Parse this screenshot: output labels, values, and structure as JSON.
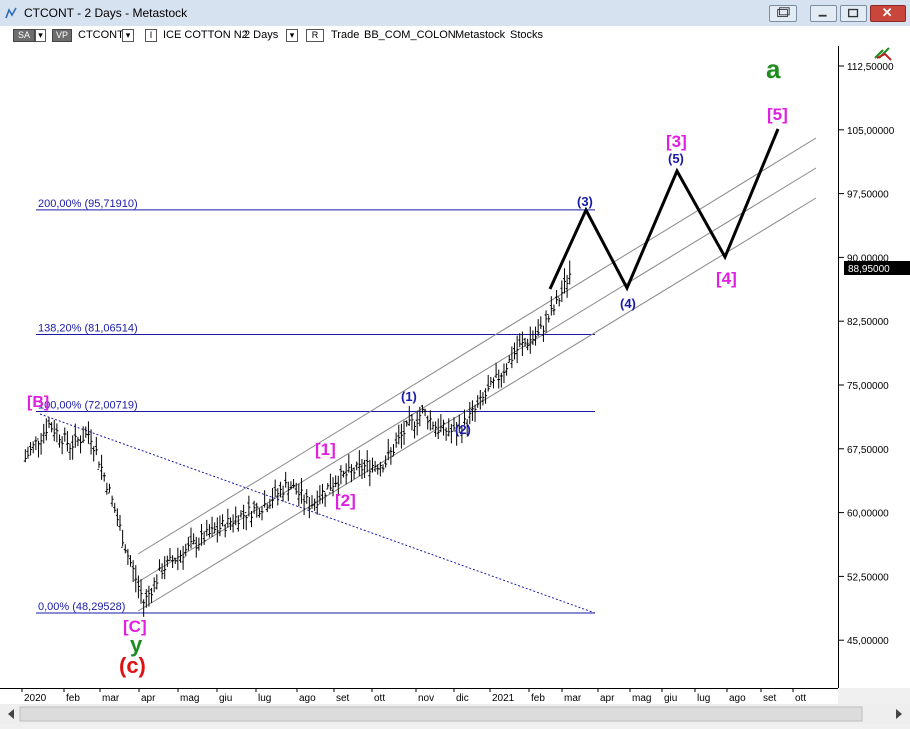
{
  "window": {
    "title": "CTCONT - 2 Days - Metastock"
  },
  "toolbar": {
    "sa_label": "SA",
    "vp_label": "VP",
    "symbol": "CTCONT",
    "instrument": "ICE COTTON N2",
    "period": "2 Days",
    "r_label": "R",
    "mode": "Trade",
    "source": "BB_COM_COLON",
    "vendor": "Metastock",
    "type": "Stocks",
    "dropdown_glyph": "▾",
    "i_glyph": "I"
  },
  "price_axis": {
    "ticks": [
      "112,50000",
      "105,00000",
      "97,50000",
      "90,00000",
      "82,50000",
      "75,00000",
      "67,50000",
      "60,00000",
      "52,50000",
      "45,00000"
    ],
    "last_price": "88,95000"
  },
  "date_axis": {
    "labels": [
      "2020",
      "feb",
      "mar",
      "apr",
      "mag",
      "giu",
      "lug",
      "ago",
      "set",
      "ott",
      "nov",
      "dic",
      "2021",
      "feb",
      "mar",
      "apr",
      "mag",
      "giu",
      "lug",
      "ago",
      "set",
      "ott"
    ]
  },
  "fib_levels": [
    {
      "label": "200,00% (95,71910)",
      "value": 95.7191
    },
    {
      "label": "138,20% (81,06514)",
      "value": 81.06514
    },
    {
      "label": "100,00% (72,00719)",
      "value": 72.00719
    },
    {
      "label": "0,00% (48,29528)",
      "value": 48.29528
    }
  ],
  "wave_labels": {
    "b_top": "[B]",
    "c_bottom": "[C]",
    "y": "y",
    "c_small": "(c)",
    "w1": "[1]",
    "w2": "[2]",
    "sub1": "(1)",
    "sub2": "(2)",
    "sub3": "(3)",
    "sub4": "(4)",
    "sub5": "(5)",
    "w3": "[3]",
    "w4": "[4]",
    "w5": "[5]",
    "a": "a"
  },
  "chart_data": {
    "type": "ohlc",
    "symbol": "CTCONT",
    "period": "2 Days",
    "y_range": [
      41.5,
      117.5
    ],
    "last_price": 88.95,
    "fib_extension": [
      {
        "ratio": "0,00%",
        "price": 48.29528
      },
      {
        "ratio": "100,00%",
        "price": 72.00719
      },
      {
        "ratio": "138,20%",
        "price": 81.06514
      },
      {
        "ratio": "200,00%",
        "price": 95.7191
      }
    ],
    "price_path_approx": [
      {
        "date": "2020-01-02",
        "price": 66.5
      },
      {
        "date": "2020-01-20",
        "price": 70.5
      },
      {
        "date": "2020-02-05",
        "price": 68.0
      },
      {
        "date": "2020-02-20",
        "price": 69.5
      },
      {
        "date": "2020-03-05",
        "price": 63.0
      },
      {
        "date": "2020-03-20",
        "price": 55.0
      },
      {
        "date": "2020-04-01",
        "price": 49.5
      },
      {
        "date": "2020-04-15",
        "price": 53.5
      },
      {
        "date": "2020-05-01",
        "price": 55.5
      },
      {
        "date": "2020-05-20",
        "price": 57.5
      },
      {
        "date": "2020-06-10",
        "price": 59.5
      },
      {
        "date": "2020-07-01",
        "price": 61.0
      },
      {
        "date": "2020-07-20",
        "price": 63.5
      },
      {
        "date": "2020-08-05",
        "price": 61.0
      },
      {
        "date": "2020-08-25",
        "price": 64.0
      },
      {
        "date": "2020-09-15",
        "price": 65.5
      },
      {
        "date": "2020-10-01",
        "price": 66.0
      },
      {
        "date": "2020-10-15",
        "price": 69.5
      },
      {
        "date": "2020-10-30",
        "price": 72.0
      },
      {
        "date": "2020-11-10",
        "price": 70.0
      },
      {
        "date": "2020-11-25",
        "price": 69.5
      },
      {
        "date": "2020-12-10",
        "price": 72.5
      },
      {
        "date": "2020-12-28",
        "price": 76.5
      },
      {
        "date": "2021-01-10",
        "price": 79.5
      },
      {
        "date": "2021-01-25",
        "price": 81.0
      },
      {
        "date": "2021-02-08",
        "price": 84.5
      },
      {
        "date": "2021-02-20",
        "price": 88.95
      }
    ],
    "projection": [
      {
        "label": "(3)",
        "price": 95.7
      },
      {
        "label": "(4)",
        "price": 86.5
      },
      {
        "label": "(5)",
        "price": 100.5
      },
      {
        "label": "[4]",
        "price": 90.5
      },
      {
        "label": "[5]",
        "price": 105.0
      }
    ]
  }
}
